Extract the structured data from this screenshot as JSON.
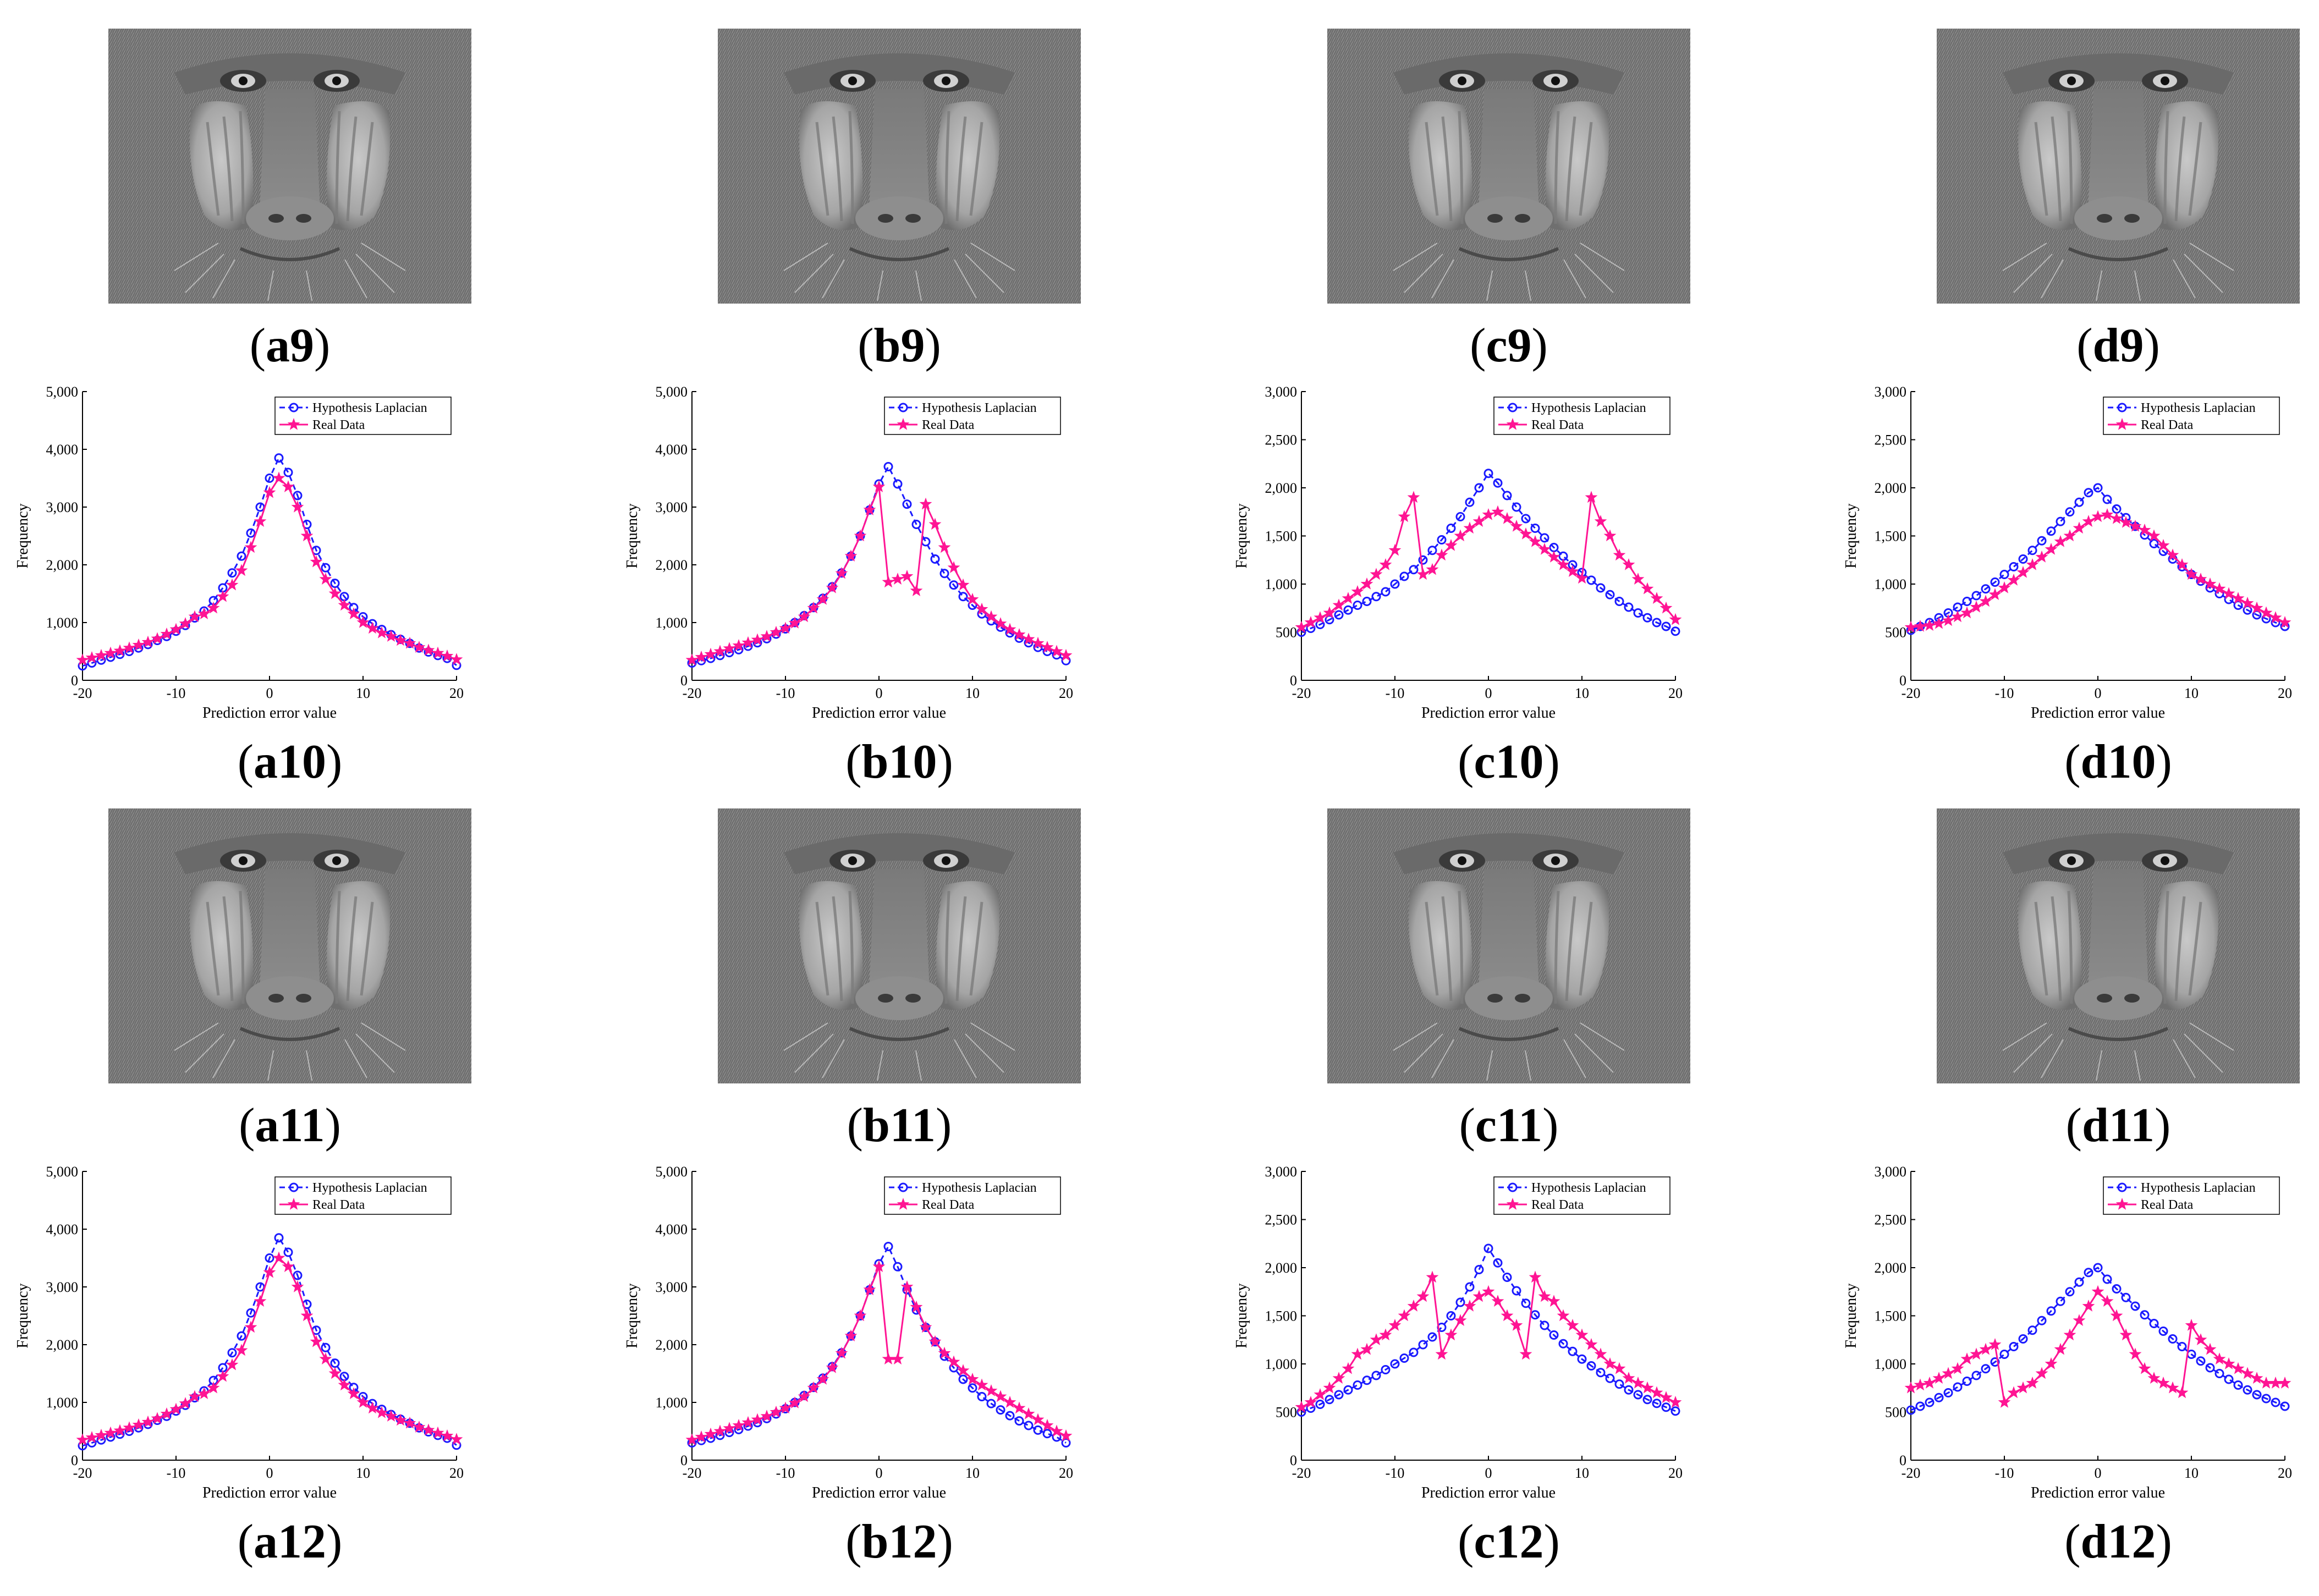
{
  "legend": {
    "hypothesis": "Hypothesis Laplacian",
    "real": "Real Data"
  },
  "axis": {
    "xlabel": "Prediction error value",
    "ylabel": "Frequency",
    "xticks": [
      "-20",
      "-10",
      "0",
      "10",
      "20"
    ]
  },
  "colors": {
    "hypothesis": "#1a1aff",
    "real": "#ff1493",
    "axis": "#000000"
  },
  "image_captions": [
    [
      "a9",
      "b9",
      "c9",
      "d9"
    ],
    [
      "a11",
      "b11",
      "c11",
      "d11"
    ]
  ],
  "chart_captions": [
    [
      "a10",
      "b10",
      "c10",
      "d10"
    ],
    [
      "a12",
      "b12",
      "c12",
      "d12"
    ]
  ],
  "image_icon": "baboon-grayscale-image",
  "chart_data": [
    {
      "id": "a10",
      "type": "line",
      "x_start": -20,
      "x_end": 20,
      "xlim": [
        -20,
        20
      ],
      "ylim": [
        0,
        5000
      ],
      "yticks": [
        "0",
        "1,000",
        "2,000",
        "3,000",
        "4,000",
        "5,000"
      ],
      "ytick_values": [
        0,
        1000,
        2000,
        3000,
        4000,
        5000
      ],
      "series": [
        {
          "name": "Hypothesis Laplacian",
          "values": [
            250,
            300,
            350,
            400,
            450,
            500,
            560,
            620,
            690,
            760,
            850,
            950,
            1080,
            1200,
            1380,
            1600,
            1860,
            2150,
            2550,
            3000,
            3500,
            3850,
            3600,
            3200,
            2700,
            2250,
            1950,
            1680,
            1450,
            1260,
            1100,
            980,
            880,
            790,
            710,
            640,
            560,
            490,
            430,
            380,
            260
          ]
        },
        {
          "name": "Real Data",
          "values": [
            350,
            390,
            430,
            470,
            510,
            560,
            610,
            660,
            720,
            800,
            880,
            980,
            1100,
            1150,
            1250,
            1450,
            1650,
            1900,
            2300,
            2750,
            3250,
            3500,
            3350,
            3000,
            2500,
            2050,
            1750,
            1500,
            1300,
            1150,
            1000,
            900,
            820,
            760,
            690,
            640,
            570,
            520,
            470,
            420,
            360
          ]
        }
      ]
    },
    {
      "id": "b10",
      "type": "line",
      "x_start": -20,
      "x_end": 20,
      "xlim": [
        -20,
        20
      ],
      "ylim": [
        0,
        5000
      ],
      "yticks": [
        "0",
        "1,000",
        "2,000",
        "3,000",
        "4,000",
        "5,000"
      ],
      "ytick_values": [
        0,
        1000,
        2000,
        3000,
        4000,
        5000
      ],
      "series": [
        {
          "name": "Hypothesis Laplacian",
          "values": [
            300,
            340,
            380,
            430,
            480,
            530,
            590,
            650,
            720,
            800,
            890,
            1000,
            1120,
            1260,
            1420,
            1620,
            1860,
            2150,
            2500,
            2950,
            3400,
            3700,
            3400,
            3050,
            2700,
            2400,
            2100,
            1850,
            1650,
            1450,
            1300,
            1150,
            1030,
            920,
            820,
            730,
            650,
            570,
            500,
            440,
            340
          ]
        },
        {
          "name": "Real Data",
          "values": [
            350,
            400,
            450,
            500,
            550,
            600,
            650,
            700,
            760,
            830,
            900,
            990,
            1100,
            1250,
            1400,
            1600,
            1850,
            2150,
            2500,
            2950,
            3350,
            1700,
            1750,
            1800,
            1550,
            3050,
            2700,
            2300,
            1950,
            1650,
            1400,
            1230,
            1100,
            980,
            880,
            790,
            710,
            640,
            570,
            500,
            430
          ]
        }
      ]
    },
    {
      "id": "c10",
      "type": "line",
      "x_start": -20,
      "x_end": 20,
      "xlim": [
        -20,
        20
      ],
      "ylim": [
        0,
        3000
      ],
      "yticks": [
        "0",
        "500",
        "1,000",
        "1,500",
        "2,000",
        "2,500",
        "3,000"
      ],
      "ytick_values": [
        0,
        500,
        1000,
        1500,
        2000,
        2500,
        3000
      ],
      "series": [
        {
          "name": "Hypothesis Laplacian",
          "values": [
            500,
            540,
            580,
            630,
            680,
            730,
            780,
            820,
            870,
            920,
            1000,
            1080,
            1150,
            1250,
            1350,
            1460,
            1580,
            1700,
            1850,
            2000,
            2150,
            2050,
            1920,
            1800,
            1680,
            1580,
            1480,
            1380,
            1290,
            1200,
            1120,
            1040,
            960,
            890,
            820,
            760,
            700,
            650,
            600,
            560,
            510
          ]
        },
        {
          "name": "Real Data",
          "values": [
            550,
            600,
            650,
            700,
            780,
            850,
            920,
            1000,
            1100,
            1200,
            1350,
            1700,
            1900,
            1100,
            1150,
            1300,
            1400,
            1500,
            1580,
            1650,
            1720,
            1750,
            1680,
            1600,
            1520,
            1440,
            1360,
            1280,
            1200,
            1130,
            1060,
            1900,
            1650,
            1500,
            1300,
            1200,
            1050,
            950,
            850,
            750,
            630
          ]
        }
      ]
    },
    {
      "id": "d10",
      "type": "line",
      "x_start": -20,
      "x_end": 20,
      "xlim": [
        -20,
        20
      ],
      "ylim": [
        0,
        3000
      ],
      "yticks": [
        "0",
        "500",
        "1,000",
        "1,500",
        "2,000",
        "2,500",
        "3,000"
      ],
      "ytick_values": [
        0,
        500,
        1000,
        1500,
        2000,
        2500,
        3000
      ],
      "series": [
        {
          "name": "Hypothesis Laplacian",
          "values": [
            520,
            560,
            600,
            650,
            700,
            760,
            820,
            880,
            950,
            1020,
            1100,
            1180,
            1260,
            1350,
            1450,
            1550,
            1650,
            1750,
            1850,
            1950,
            2000,
            1880,
            1780,
            1690,
            1600,
            1510,
            1420,
            1340,
            1260,
            1180,
            1100,
            1030,
            960,
            900,
            840,
            780,
            730,
            680,
            640,
            600,
            560
          ]
        },
        {
          "name": "Real Data",
          "values": [
            550,
            560,
            570,
            590,
            620,
            660,
            700,
            760,
            820,
            890,
            960,
            1040,
            1120,
            1200,
            1280,
            1360,
            1440,
            1500,
            1580,
            1650,
            1700,
            1720,
            1680,
            1640,
            1600,
            1560,
            1500,
            1400,
            1300,
            1200,
            1100,
            1050,
            1000,
            950,
            900,
            850,
            800,
            750,
            700,
            650,
            600
          ]
        }
      ]
    },
    {
      "id": "a12",
      "type": "line",
      "x_start": -20,
      "x_end": 20,
      "xlim": [
        -20,
        20
      ],
      "ylim": [
        0,
        5000
      ],
      "yticks": [
        "0",
        "1,000",
        "2,000",
        "3,000",
        "4,000",
        "5,000"
      ],
      "ytick_values": [
        0,
        1000,
        2000,
        3000,
        4000,
        5000
      ],
      "series": [
        {
          "name": "Hypothesis Laplacian",
          "values": [
            250,
            300,
            350,
            400,
            450,
            500,
            560,
            620,
            690,
            760,
            850,
            950,
            1080,
            1200,
            1380,
            1600,
            1860,
            2150,
            2550,
            3000,
            3500,
            3850,
            3600,
            3200,
            2700,
            2250,
            1950,
            1680,
            1450,
            1260,
            1100,
            980,
            880,
            790,
            710,
            640,
            560,
            490,
            430,
            380,
            260
          ]
        },
        {
          "name": "Real Data",
          "values": [
            350,
            390,
            430,
            470,
            510,
            560,
            610,
            660,
            720,
            800,
            880,
            980,
            1100,
            1150,
            1250,
            1450,
            1650,
            1900,
            2300,
            2750,
            3250,
            3500,
            3350,
            3000,
            2500,
            2050,
            1750,
            1500,
            1300,
            1150,
            1000,
            900,
            820,
            760,
            690,
            640,
            570,
            520,
            470,
            420,
            360
          ]
        }
      ]
    },
    {
      "id": "b12",
      "type": "line",
      "x_start": -20,
      "x_end": 20,
      "xlim": [
        -20,
        20
      ],
      "ylim": [
        0,
        5000
      ],
      "yticks": [
        "0",
        "1,000",
        "2,000",
        "3,000",
        "4,000",
        "5,000"
      ],
      "ytick_values": [
        0,
        1000,
        2000,
        3000,
        4000,
        5000
      ],
      "series": [
        {
          "name": "Hypothesis Laplacian",
          "values": [
            300,
            340,
            380,
            430,
            480,
            530,
            590,
            650,
            720,
            800,
            890,
            1000,
            1120,
            1260,
            1420,
            1620,
            1860,
            2150,
            2500,
            2950,
            3400,
            3700,
            3350,
            2950,
            2600,
            2300,
            2050,
            1800,
            1600,
            1400,
            1250,
            1100,
            980,
            870,
            770,
            680,
            600,
            520,
            460,
            400,
            300
          ]
        },
        {
          "name": "Real Data",
          "values": [
            350,
            400,
            450,
            500,
            550,
            600,
            650,
            700,
            760,
            830,
            900,
            990,
            1100,
            1250,
            1400,
            1600,
            1850,
            2150,
            2500,
            2950,
            3350,
            1750,
            1750,
            3000,
            2650,
            2300,
            2050,
            1850,
            1700,
            1550,
            1400,
            1300,
            1200,
            1100,
            1000,
            900,
            800,
            700,
            600,
            500,
            420
          ]
        }
      ]
    },
    {
      "id": "c12",
      "type": "line",
      "x_start": -20,
      "x_end": 20,
      "xlim": [
        -20,
        20
      ],
      "ylim": [
        0,
        3000
      ],
      "yticks": [
        "0",
        "500",
        "1,000",
        "1,500",
        "2,000",
        "2,500",
        "3,000"
      ],
      "ytick_values": [
        0,
        500,
        1000,
        1500,
        2000,
        2500,
        3000
      ],
      "series": [
        {
          "name": "Hypothesis Laplacian",
          "values": [
            500,
            540,
            580,
            630,
            680,
            730,
            780,
            830,
            880,
            940,
            1000,
            1060,
            1120,
            1200,
            1280,
            1380,
            1500,
            1640,
            1800,
            1980,
            2200,
            2050,
            1900,
            1760,
            1630,
            1510,
            1400,
            1300,
            1210,
            1130,
            1050,
            980,
            910,
            850,
            790,
            730,
            680,
            630,
            590,
            550,
            510
          ]
        },
        {
          "name": "Real Data",
          "values": [
            550,
            600,
            680,
            750,
            850,
            950,
            1100,
            1150,
            1250,
            1300,
            1400,
            1500,
            1600,
            1700,
            1900,
            1100,
            1300,
            1450,
            1600,
            1700,
            1750,
            1650,
            1500,
            1400,
            1100,
            1900,
            1700,
            1650,
            1500,
            1400,
            1300,
            1200,
            1100,
            1000,
            950,
            850,
            800,
            750,
            700,
            650,
            600
          ]
        }
      ]
    },
    {
      "id": "d12",
      "type": "line",
      "x_start": -20,
      "x_end": 20,
      "xlim": [
        -20,
        20
      ],
      "ylim": [
        0,
        3000
      ],
      "yticks": [
        "0",
        "500",
        "1,000",
        "1,500",
        "2,000",
        "2,500",
        "3,000"
      ],
      "ytick_values": [
        0,
        500,
        1000,
        1500,
        2000,
        2500,
        3000
      ],
      "series": [
        {
          "name": "Hypothesis Laplacian",
          "values": [
            520,
            560,
            600,
            650,
            700,
            760,
            820,
            880,
            950,
            1020,
            1100,
            1180,
            1260,
            1350,
            1450,
            1550,
            1650,
            1750,
            1850,
            1950,
            2000,
            1880,
            1780,
            1690,
            1600,
            1510,
            1420,
            1340,
            1260,
            1180,
            1100,
            1030,
            960,
            900,
            840,
            780,
            730,
            680,
            640,
            600,
            560
          ]
        },
        {
          "name": "Real Data",
          "values": [
            750,
            780,
            800,
            850,
            900,
            950,
            1050,
            1100,
            1150,
            1200,
            600,
            700,
            750,
            800,
            900,
            1000,
            1150,
            1300,
            1450,
            1600,
            1750,
            1650,
            1500,
            1300,
            1100,
            950,
            850,
            800,
            750,
            700,
            1400,
            1250,
            1150,
            1050,
            1000,
            950,
            900,
            850,
            800,
            800,
            800
          ]
        }
      ]
    }
  ]
}
